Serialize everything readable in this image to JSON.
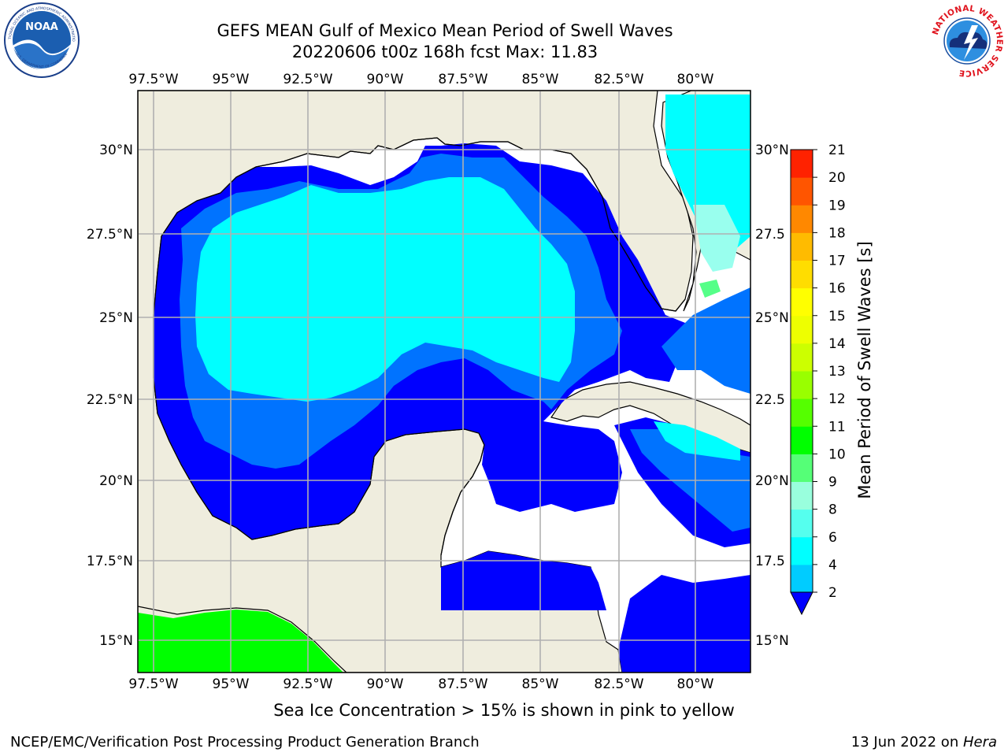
{
  "title": {
    "line1": "GEFS MEAN Gulf of Mexico Mean Period of Swell Waves",
    "line2": "20220606 t00z 168h fcst   Max: 11.83"
  },
  "logos": {
    "left_icon": "noaa-logo",
    "left_text": "NOAA",
    "left_ring_top": "NATIONAL OCEANIC AND ATMOSPHERIC ADMINISTRATION",
    "left_ring_bottom": "U.S. DEPARTMENT OF COMMERCE",
    "right_icon": "nws-logo",
    "right_ring_text": "NATIONAL WEATHER SERVICE"
  },
  "map": {
    "lon_labels": [
      "97.5°W",
      "95°W",
      "92.5°W",
      "90°W",
      "87.5°W",
      "85°W",
      "82.5°W",
      "80°W"
    ],
    "lat_labels_left": [
      "30°N",
      "27.5°N",
      "25°N",
      "22.5°N",
      "20°N",
      "17.5°N",
      "15°N"
    ],
    "lat_labels_right": [
      "30°N",
      "27.5",
      "25°N",
      "22.5",
      "20°N",
      "17.5",
      "15°N"
    ],
    "colors": {
      "land": "#efedde",
      "grid": "#b0b0b0",
      "coast": "#000000"
    }
  },
  "colorbar": {
    "label": "Mean Period of Swell Waves [s]",
    "ticks": [
      "2",
      "4",
      "6",
      "8",
      "9",
      "10",
      "11",
      "12",
      "13",
      "14",
      "15",
      "16",
      "17",
      "18",
      "19",
      "20",
      "21"
    ],
    "colors": [
      "#0000ff",
      "#0073ff",
      "#00ccff",
      "#00ffff",
      "#55ffee",
      "#99ffdd",
      "#55ff77",
      "#00ff00",
      "#55ff00",
      "#99ff00",
      "#ccff00",
      "#eeff00",
      "#ffff00",
      "#ffdd00",
      "#ffbb00",
      "#ff8800",
      "#ff5500",
      "#ff2200",
      "#ff0000"
    ]
  },
  "chart_data": {
    "type": "heatmap",
    "title": "GEFS MEAN Gulf of Mexico Mean Period of Swell Waves",
    "subtitle": "20220606 t00z 168h fcst   Max: 11.83",
    "max": 11.83,
    "xlabel": "",
    "ylabel": "",
    "lon_range": [
      -98.0,
      -78.2
    ],
    "lat_range": [
      14.0,
      31.8
    ],
    "color_scale_label": "Mean Period of Swell Waves [s]",
    "levels": [
      2,
      4,
      6,
      8,
      9,
      10,
      11,
      12,
      13,
      14,
      15,
      16,
      17,
      18,
      19,
      20,
      21
    ]
  },
  "note": "Sea Ice Concentration > 15% is shown in pink to yellow",
  "footer": {
    "left": "NCEP/EMC/Verification Post Processing Product Generation Branch",
    "right_prefix": "13 Jun 2022 on ",
    "right_host": "Hera"
  }
}
